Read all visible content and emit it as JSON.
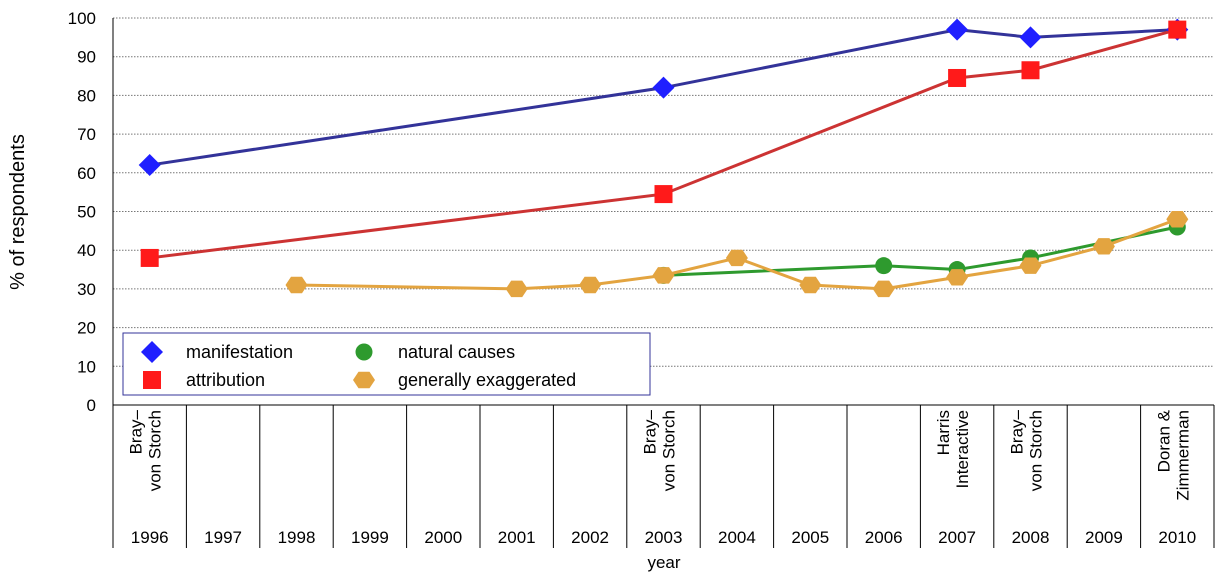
{
  "chart_data": {
    "type": "line",
    "y_label": "% of respondents",
    "x_label": "year",
    "categories": [
      1996,
      1997,
      1998,
      1999,
      2000,
      2001,
      2002,
      2003,
      2004,
      2005,
      2006,
      2007,
      2008,
      2009,
      2010
    ],
    "sources": [
      [
        "Bray–",
        "von Storch"
      ],
      null,
      null,
      null,
      null,
      null,
      null,
      [
        "Bray–",
        "von Storch"
      ],
      null,
      null,
      null,
      [
        "Harris",
        "Interactive"
      ],
      [
        "Bray–",
        "von Storch"
      ],
      null,
      [
        "Doran &",
        "Zimmerman"
      ]
    ],
    "ylim": [
      0,
      100
    ],
    "yticks": [
      0,
      10,
      20,
      30,
      40,
      50,
      60,
      70,
      80,
      90,
      100
    ],
    "grid": true,
    "series": [
      {
        "name": "manifestation",
        "color": "#1f1fff",
        "line_color": "#333399",
        "marker": "diamond",
        "x": [
          1996,
          2003,
          2007,
          2008,
          2010
        ],
        "values": [
          62,
          82,
          97,
          95,
          97
        ]
      },
      {
        "name": "attribution",
        "color": "#ff1a1a",
        "line_color": "#cc3333",
        "marker": "square",
        "x": [
          1996,
          2003,
          2007,
          2008,
          2010
        ],
        "values": [
          38,
          54.5,
          84.5,
          86.5,
          97
        ]
      },
      {
        "name": "natural causes",
        "color": "#2e9a2e",
        "line_color": "#2e9a2e",
        "marker": "circle",
        "x": [
          2003,
          2006,
          2007,
          2008,
          2010
        ],
        "values": [
          33.5,
          36,
          35,
          38,
          46
        ]
      },
      {
        "name": "generally exaggerated",
        "color": "#e3a440",
        "line_color": "#e3a440",
        "marker": "hexagon",
        "x": [
          1998,
          2001,
          2002,
          2003,
          2004,
          2005,
          2006,
          2007,
          2008,
          2009,
          2010
        ],
        "values": [
          31,
          30,
          31,
          33.5,
          38,
          31,
          30,
          33,
          36,
          41,
          48
        ]
      }
    ]
  }
}
